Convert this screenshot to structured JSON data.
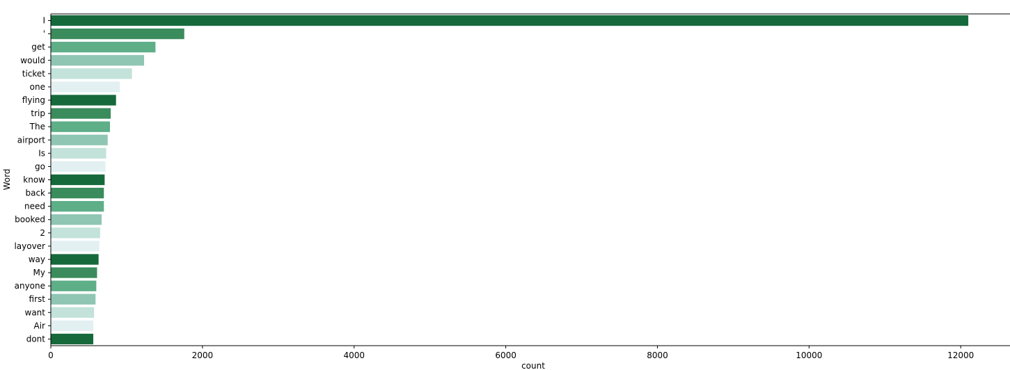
{
  "chart_data": {
    "type": "bar",
    "orientation": "horizontal",
    "categories": [
      "I",
      "'",
      "get",
      "would",
      "ticket",
      "one",
      "flying",
      "trip",
      "The",
      "airport",
      "Is",
      "go",
      "know",
      "back",
      "need",
      "booked",
      "2",
      "layover",
      "way",
      "My",
      "anyone",
      "first",
      "want",
      "Air",
      "dont"
    ],
    "values": [
      12100,
      1760,
      1380,
      1230,
      1070,
      910,
      860,
      790,
      780,
      750,
      730,
      720,
      710,
      700,
      700,
      670,
      650,
      640,
      630,
      610,
      600,
      590,
      570,
      560,
      560
    ],
    "xlabel": "count",
    "ylabel": "Word",
    "xlim": [
      0,
      12650
    ],
    "xticks": [
      0,
      2000,
      4000,
      6000,
      8000,
      10000,
      12000
    ],
    "palette": [
      "#16693b",
      "#3b8c5c",
      "#5eae88",
      "#8fc6b3",
      "#c2e2da",
      "#e2f0f2"
    ],
    "grid": false,
    "legend": "none"
  }
}
